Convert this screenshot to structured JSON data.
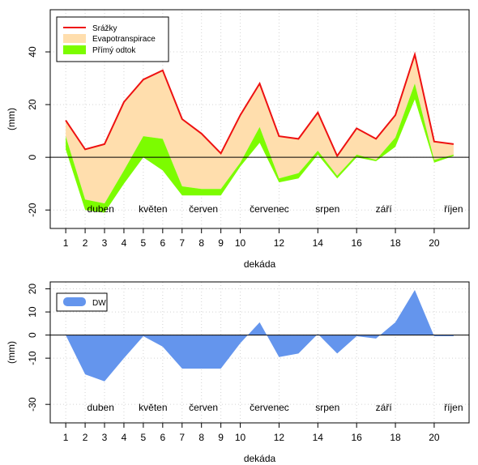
{
  "colors": {
    "precip": "#ee1111",
    "evapo": "#ffdead",
    "runoff": "#7cfc00",
    "dw": "#6495ed",
    "zero_line": "#000000",
    "grid": "#d3d3d3"
  },
  "chart_data": [
    {
      "type": "area",
      "xlabel": "dekáda",
      "ylabel": "(mm)",
      "xlim": [
        0.2,
        21.8
      ],
      "ylim": [
        -27,
        56
      ],
      "x_ticks": [
        1,
        2,
        3,
        4,
        5,
        6,
        7,
        8,
        9,
        10,
        12,
        14,
        16,
        18,
        20
      ],
      "y_ticks": [
        -20,
        0,
        20,
        40
      ],
      "grid": "dotted",
      "legend_position": "top-left",
      "months": [
        "duben",
        "květen",
        "červen",
        "červenec",
        "srpen",
        "září",
        "říjen"
      ],
      "x": [
        1,
        2,
        3,
        4,
        5,
        6,
        7,
        8,
        9,
        10,
        11,
        12,
        13,
        14,
        15,
        16,
        17,
        18,
        19,
        20,
        21
      ],
      "series": [
        {
          "name": "Srážky",
          "values": [
            14,
            3,
            5,
            21,
            29.5,
            33,
            14.5,
            9,
            1.5,
            16,
            28,
            8,
            7,
            17,
            0.5,
            11,
            7,
            16,
            39,
            6,
            5
          ]
        },
        {
          "name": "Evapotranspirace",
          "values_upper": [
            14,
            3,
            5,
            21,
            29.5,
            33,
            14.5,
            9,
            1.5,
            16,
            28,
            8,
            7,
            17,
            0.5,
            11,
            7,
            16,
            39,
            6,
            5
          ],
          "values_lower": [
            8,
            -16,
            -17.5,
            -5,
            8,
            7,
            -11,
            -12,
            -12,
            -2,
            11.5,
            -8,
            -6,
            2.5,
            -7,
            1,
            -1,
            7.5,
            28,
            -1,
            1
          ]
        },
        {
          "name": "Přímý odtok",
          "values_upper": [
            8,
            -16,
            -17.5,
            -5,
            8,
            7,
            -11,
            -12,
            -12,
            -2,
            11.5,
            -8,
            -6,
            2.5,
            -7,
            1,
            -1,
            7.5,
            28,
            -1,
            1
          ],
          "values_lower": [
            3,
            -20,
            -21,
            -10,
            0,
            -5,
            -14.5,
            -14.5,
            -14.5,
            -3.5,
            5.5,
            -9.5,
            -8,
            1,
            -8,
            0,
            -1.5,
            4,
            22,
            -2,
            0.5
          ]
        }
      ]
    },
    {
      "type": "area",
      "xlabel": "dekáda",
      "ylabel": "(mm)",
      "xlim": [
        0.2,
        21.8
      ],
      "ylim": [
        -38,
        23
      ],
      "x_ticks": [
        1,
        2,
        3,
        4,
        5,
        6,
        7,
        8,
        9,
        10,
        12,
        14,
        16,
        18,
        20
      ],
      "y_ticks": [
        -30,
        -10,
        0,
        10,
        20
      ],
      "grid": "dotted",
      "legend_position": "top-left",
      "months": [
        "duben",
        "květen",
        "červen",
        "červenec",
        "srpen",
        "září",
        "říjen"
      ],
      "x": [
        1,
        2,
        3,
        4,
        5,
        6,
        7,
        8,
        9,
        10,
        11,
        12,
        13,
        14,
        15,
        16,
        17,
        18,
        19,
        20,
        21
      ],
      "series": [
        {
          "name": "DW",
          "values": [
            0,
            -17,
            -20,
            -10,
            -0.5,
            -5,
            -14.5,
            -14.5,
            -14.5,
            -3.5,
            5.5,
            -9.5,
            -8,
            0.5,
            -8,
            -0.5,
            -1.5,
            5.5,
            19.5,
            -0.5,
            -0.5
          ]
        }
      ]
    }
  ]
}
